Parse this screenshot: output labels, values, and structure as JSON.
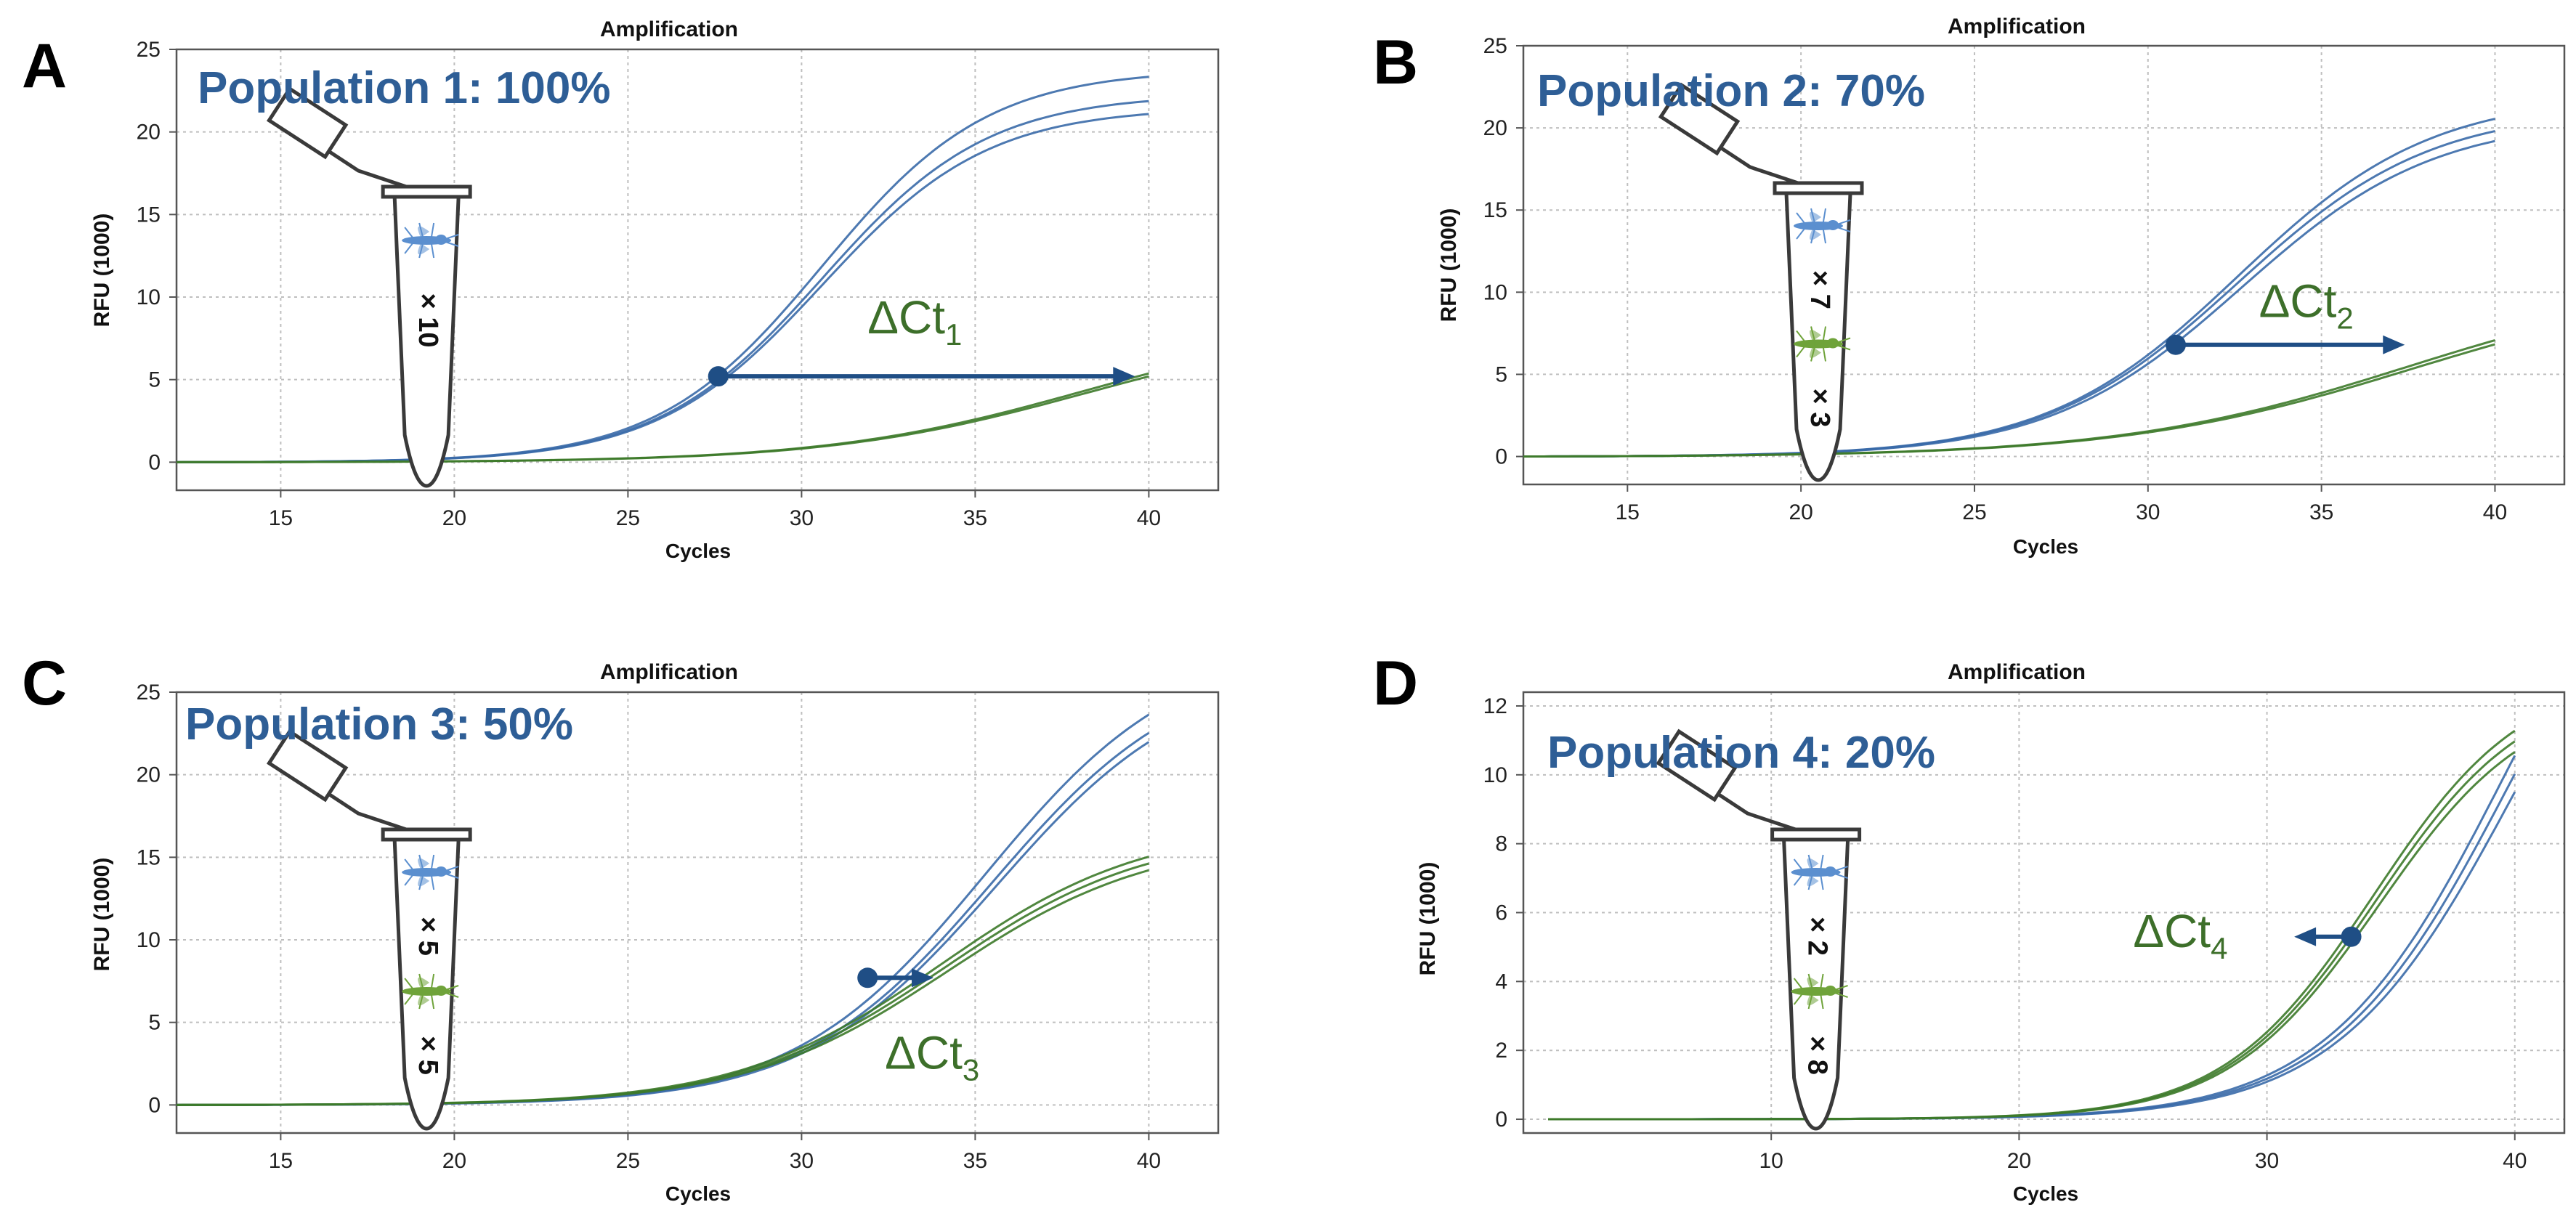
{
  "figure": {
    "legend_placement": "none",
    "colors": {
      "blue": "#3a6aa8",
      "green": "#3d7a2a",
      "arrow_blue": "#1f4e85",
      "delta_green": "#3d6f2a",
      "population_text": "#2e5e96",
      "grid": "#bfbfbf"
    }
  },
  "chart_data": [
    {
      "panel": "A",
      "type": "line",
      "title": "Amplification",
      "population_label": "Population 1: 100%",
      "xlabel": "Cycles",
      "ylabel": "RFU (1000)",
      "xlim": [
        12,
        42
      ],
      "ylim": [
        -1.7,
        25
      ],
      "xticks": [
        15,
        20,
        25,
        30,
        35,
        40
      ],
      "yticks": [
        0,
        5,
        10,
        15,
        20,
        25
      ],
      "grid": true,
      "tube": {
        "x_center": 19.2,
        "counts": [
          {
            "label": "× 10",
            "icon": "blue-mosquito"
          }
        ]
      },
      "series": [
        {
          "name": "blue-1",
          "color": "blue",
          "model": {
            "start": 12,
            "end": 40,
            "plateau": 23.8,
            "mid": 30.6,
            "slope": 0.42
          }
        },
        {
          "name": "blue-2",
          "color": "blue",
          "model": {
            "start": 12,
            "end": 40,
            "plateau": 22.3,
            "mid": 30.6,
            "slope": 0.42
          }
        },
        {
          "name": "blue-3",
          "color": "blue",
          "model": {
            "start": 12,
            "end": 40,
            "plateau": 21.5,
            "mid": 30.6,
            "slope": 0.42
          }
        },
        {
          "name": "green-1",
          "color": "green",
          "model": {
            "start": 12,
            "end": 40,
            "plateau": 8.6,
            "mid": 38.1,
            "slope": 0.27
          }
        },
        {
          "name": "green-2",
          "color": "green",
          "model": {
            "start": 12,
            "end": 40,
            "plateau": 8.4,
            "mid": 38.2,
            "slope": 0.27
          }
        }
      ],
      "delta_ct": {
        "base": "ΔCt",
        "sub": "1",
        "from": [
          27.6,
          5.2
        ],
        "to": [
          39.6,
          5.2
        ],
        "label_at": [
          31.9,
          7.8
        ]
      }
    },
    {
      "panel": "B",
      "type": "line",
      "title": "Amplification",
      "population_label": "Population 2: 70%",
      "xlabel": "Cycles",
      "ylabel": "RFU (1000)",
      "xlim": [
        12,
        42
      ],
      "ylim": [
        -1.7,
        25
      ],
      "xticks": [
        15,
        20,
        25,
        30,
        35,
        40
      ],
      "yticks": [
        0,
        5,
        10,
        15,
        20,
        25
      ],
      "grid": true,
      "tube": {
        "x_center": 20.5,
        "counts": [
          {
            "label": "× 7",
            "icon": "blue-mosquito"
          },
          {
            "label": "× 3",
            "icon": "green-mosquito"
          }
        ]
      },
      "series": [
        {
          "name": "blue-1",
          "color": "blue",
          "model": {
            "start": 12,
            "end": 40,
            "plateau": 22.0,
            "mid": 32.6,
            "slope": 0.36
          }
        },
        {
          "name": "blue-2",
          "color": "blue",
          "model": {
            "start": 12,
            "end": 40,
            "plateau": 21.2,
            "mid": 32.6,
            "slope": 0.36
          }
        },
        {
          "name": "blue-3",
          "color": "blue",
          "model": {
            "start": 12,
            "end": 40,
            "plateau": 20.6,
            "mid": 32.7,
            "slope": 0.36
          }
        },
        {
          "name": "green-1",
          "color": "green",
          "model": {
            "start": 12,
            "end": 40,
            "plateau": 11.0,
            "mid": 37.5,
            "slope": 0.24
          }
        },
        {
          "name": "green-2",
          "color": "green",
          "model": {
            "start": 12,
            "end": 40,
            "plateau": 10.7,
            "mid": 37.6,
            "slope": 0.24
          }
        }
      ],
      "delta_ct": {
        "base": "ΔCt",
        "sub": "2",
        "from": [
          30.8,
          6.8
        ],
        "to": [
          37.4,
          6.8
        ],
        "label_at": [
          33.2,
          8.5
        ]
      }
    },
    {
      "panel": "C",
      "type": "line",
      "title": "Amplification",
      "population_label": "Population 3: 50%",
      "xlabel": "Cycles",
      "ylabel": "RFU (1000)",
      "xlim": [
        12,
        42
      ],
      "ylim": [
        -1.7,
        25
      ],
      "xticks": [
        15,
        20,
        25,
        30,
        35,
        40
      ],
      "yticks": [
        0,
        5,
        10,
        15,
        20,
        25
      ],
      "grid": true,
      "tube": {
        "x_center": 19.2,
        "counts": [
          {
            "label": "× 5",
            "icon": "blue-mosquito"
          },
          {
            "label": "× 5",
            "icon": "green-mosquito"
          }
        ]
      },
      "series": [
        {
          "name": "blue-1",
          "color": "blue",
          "model": {
            "start": 12,
            "end": 40,
            "plateau": 28.0,
            "mid": 35.3,
            "slope": 0.36
          }
        },
        {
          "name": "blue-2",
          "color": "blue",
          "model": {
            "start": 12,
            "end": 40,
            "plateau": 27.0,
            "mid": 35.5,
            "slope": 0.36
          }
        },
        {
          "name": "blue-3",
          "color": "blue",
          "model": {
            "start": 12,
            "end": 40,
            "plateau": 26.5,
            "mid": 35.6,
            "slope": 0.36
          }
        },
        {
          "name": "green-1",
          "color": "green",
          "model": {
            "start": 12,
            "end": 40,
            "plateau": 17.0,
            "mid": 34.0,
            "slope": 0.34
          }
        },
        {
          "name": "green-2",
          "color": "green",
          "model": {
            "start": 12,
            "end": 40,
            "plateau": 16.6,
            "mid": 34.1,
            "slope": 0.34
          }
        },
        {
          "name": "green-3",
          "color": "green",
          "model": {
            "start": 12,
            "end": 40,
            "plateau": 16.2,
            "mid": 34.2,
            "slope": 0.34
          }
        }
      ],
      "delta_ct": {
        "base": "ΔCt",
        "sub": "3",
        "from": [
          31.9,
          7.7
        ],
        "to": [
          33.8,
          7.7
        ],
        "label_at": [
          32.4,
          2.2
        ]
      }
    },
    {
      "panel": "D",
      "type": "line",
      "title": "Amplification",
      "population_label": "Population 4: 20%",
      "xlabel": "Cycles",
      "ylabel": "RFU (1000)",
      "xlim": [
        0,
        42
      ],
      "ylim": [
        -0.4,
        12.4
      ],
      "xticks": [
        10,
        20,
        30,
        40
      ],
      "yticks": [
        0,
        2,
        4,
        6,
        8,
        10,
        12
      ],
      "grid": true,
      "tube": {
        "x_center": 11.8,
        "counts": [
          {
            "label": "× 2",
            "icon": "blue-mosquito"
          },
          {
            "label": "× 8",
            "icon": "green-mosquito"
          }
        ]
      },
      "series": [
        {
          "name": "blue-1",
          "color": "blue",
          "model": {
            "start": 1,
            "end": 40,
            "plateau": 20.0,
            "mid": 39.6,
            "slope": 0.28
          }
        },
        {
          "name": "blue-2",
          "color": "blue",
          "model": {
            "start": 1,
            "end": 40,
            "plateau": 19.5,
            "mid": 39.8,
            "slope": 0.28
          }
        },
        {
          "name": "blue-3",
          "color": "blue",
          "model": {
            "start": 1,
            "end": 40,
            "plateau": 19.0,
            "mid": 40.0,
            "slope": 0.28
          }
        },
        {
          "name": "green-1",
          "color": "green",
          "model": {
            "start": 1,
            "end": 40,
            "plateau": 13.0,
            "mid": 34.3,
            "slope": 0.33
          }
        },
        {
          "name": "green-2",
          "color": "green",
          "model": {
            "start": 1,
            "end": 40,
            "plateau": 12.7,
            "mid": 34.4,
            "slope": 0.33
          }
        },
        {
          "name": "green-3",
          "color": "green",
          "model": {
            "start": 1,
            "end": 40,
            "plateau": 12.4,
            "mid": 34.5,
            "slope": 0.33
          }
        }
      ],
      "delta_ct": {
        "base": "ΔCt",
        "sub": "4",
        "from": [
          33.4,
          5.3
        ],
        "to": [
          31.1,
          5.3
        ],
        "label_at": [
          24.6,
          5.0
        ]
      }
    }
  ]
}
